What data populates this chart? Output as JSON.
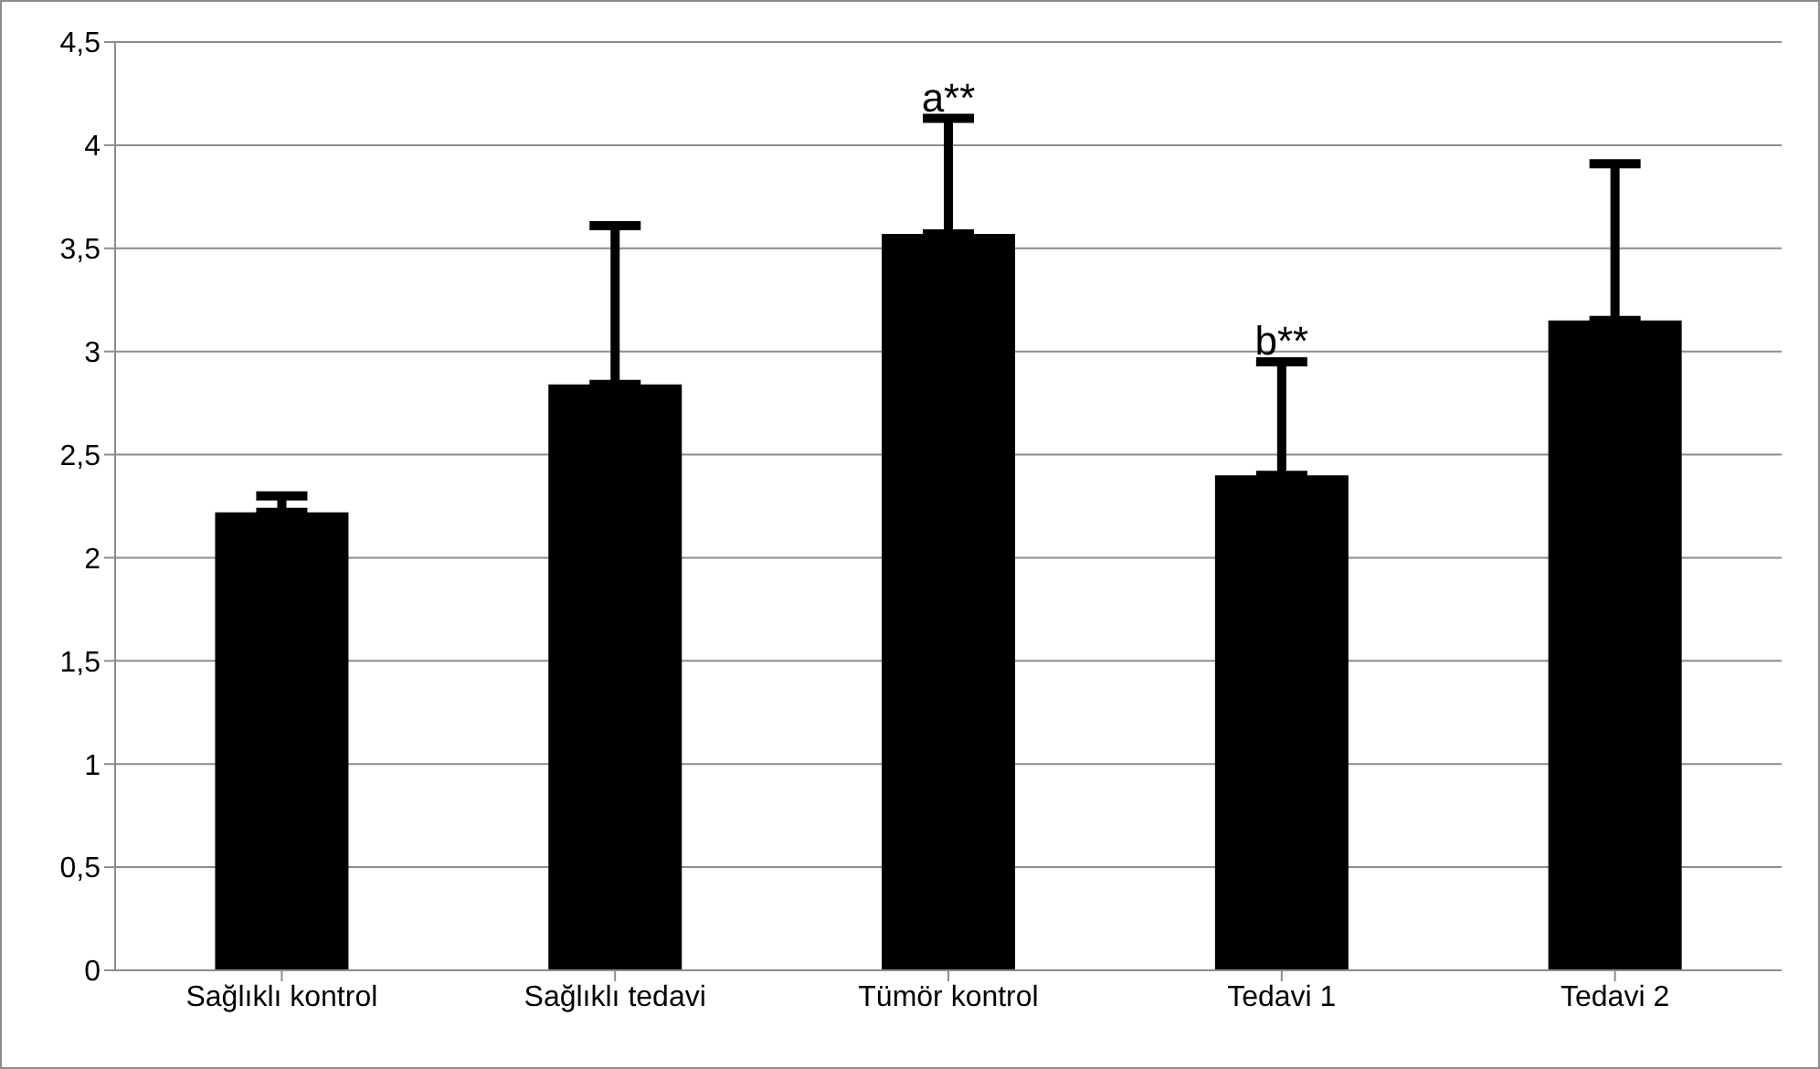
{
  "chart_data": {
    "type": "bar",
    "categories": [
      "Sağlıklı kontrol",
      "Sağlıklı tedavi",
      "Tümör kontrol",
      "Tedavi 1",
      "Tedavi 2"
    ],
    "values": [
      2.22,
      2.84,
      3.57,
      2.4,
      3.15
    ],
    "color": "#000000",
    "errors": [
      [
        2.22,
        2.3
      ],
      [
        2.84,
        3.61
      ],
      [
        3.57,
        4.13
      ],
      [
        2.4,
        2.95
      ],
      [
        3.15,
        3.91
      ]
    ],
    "ylim": [
      0,
      4.5
    ],
    "yticks": [
      0,
      {
        "value": 0.5,
        "label": "0,5"
      },
      1,
      {
        "value": 1.5,
        "label": "1,5"
      },
      2,
      {
        "value": 2.5,
        "label": "2,5"
      },
      3,
      {
        "value": 3.5,
        "label": "3,5"
      },
      4,
      {
        "value": 4.5,
        "label": "4,5"
      }
    ],
    "grid": "y",
    "legend": false,
    "annotations": [
      {
        "text": "a**",
        "x": "Tümör kontrol",
        "y": 4.13
      },
      {
        "text": "b**",
        "x": "Tedavi 1",
        "y": 2.95
      }
    ]
  }
}
